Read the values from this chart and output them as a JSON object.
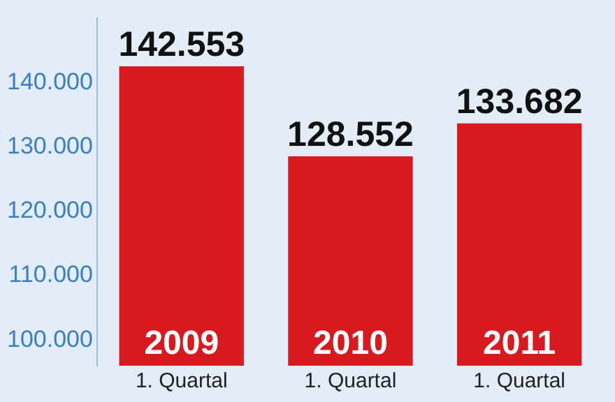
{
  "chart_data": {
    "type": "bar",
    "categories": [
      "2009",
      "2010",
      "2011"
    ],
    "values": [
      142553,
      128552,
      133682
    ],
    "color": "#d71920",
    "value_labels": [
      "142.553",
      "128.552",
      "133.682"
    ],
    "ylim": [
      96000,
      150000
    ],
    "yticks": [
      {
        "value": 100000,
        "label": "100.000"
      },
      {
        "value": 110000,
        "label": "110.000"
      },
      {
        "value": 120000,
        "label": "120.000"
      },
      {
        "value": 130000,
        "label": "130.000"
      },
      {
        "value": 140000,
        "label": "140.000"
      }
    ],
    "grid": false,
    "legend": false,
    "annotations": [
      "1. Quartal",
      "1. Quartal",
      "1. Quartal"
    ]
  }
}
